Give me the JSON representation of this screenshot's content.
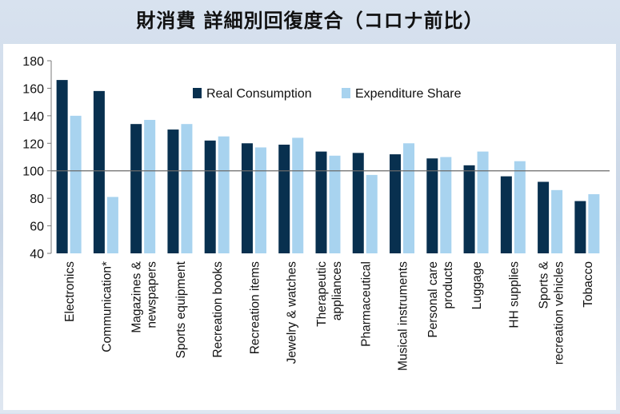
{
  "title": "財消費 詳細別回復度合（コロナ前比）",
  "colors": {
    "real": "#08304f",
    "share": "#a8d3ef",
    "axis": "#7a7a7a",
    "refline": "#6a6a6a"
  },
  "chart_data": {
    "type": "bar",
    "title": "財消費 詳細別回復度合（コロナ前比）",
    "categories": [
      [
        "Electronics"
      ],
      [
        "Communication*"
      ],
      [
        "Magazines &",
        "newspapers"
      ],
      [
        "Sports equipment"
      ],
      [
        "Recreation books"
      ],
      [
        "Recreation items"
      ],
      [
        "Jewelry & watches"
      ],
      [
        "Therapeutic",
        "appliances"
      ],
      [
        "Pharmaceutical"
      ],
      [
        "Musical instruments"
      ],
      [
        "Personal care",
        "products"
      ],
      [
        "Luggage"
      ],
      [
        "HH supplies"
      ],
      [
        "Sports &",
        "recreation vehicles"
      ],
      [
        "Tobacco"
      ]
    ],
    "series": [
      {
        "name": "Real Consumption",
        "values": [
          166,
          158,
          134,
          130,
          122,
          120,
          119,
          114,
          113,
          112,
          109,
          104,
          96,
          92,
          78
        ]
      },
      {
        "name": "Expenditure Share",
        "values": [
          140,
          81,
          137,
          134,
          125,
          117,
          124,
          111,
          97,
          120,
          110,
          114,
          107,
          86,
          83
        ]
      }
    ],
    "ylim": [
      40,
      180
    ],
    "yticks": [
      40,
      60,
      80,
      100,
      120,
      140,
      160,
      180
    ],
    "reference_line": 100,
    "legend_position": "top-center",
    "grid": false
  }
}
